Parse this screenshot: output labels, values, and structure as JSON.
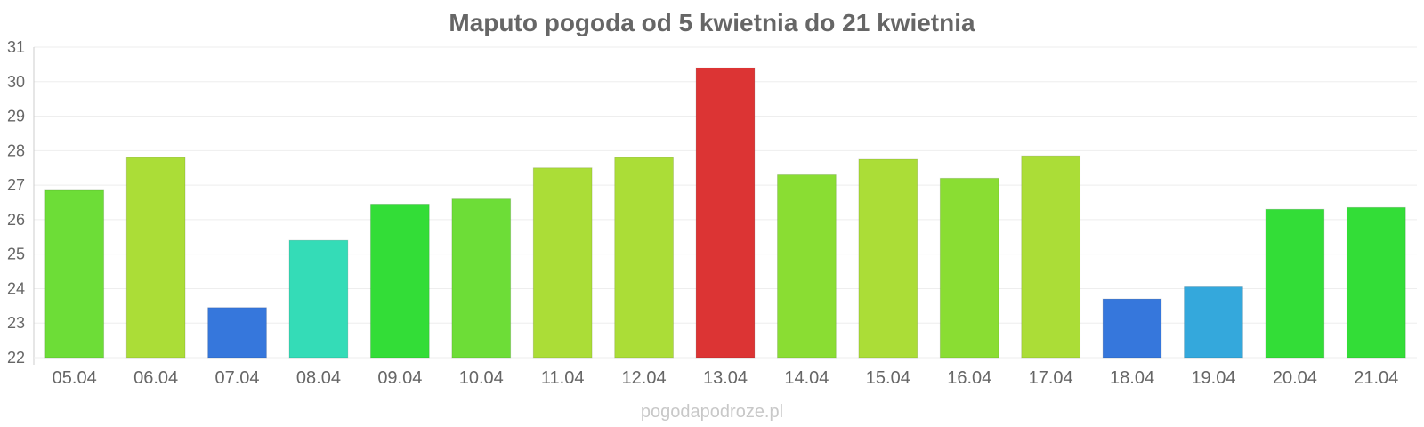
{
  "chart_data": {
    "type": "bar",
    "title": "Maputo pogoda od 5 kwietnia do 21 kwietnia",
    "xlabel": "",
    "ylabel": "",
    "ylim": [
      22,
      31
    ],
    "yticks": [
      22,
      23,
      24,
      25,
      26,
      27,
      28,
      29,
      30,
      31
    ],
    "grid": true,
    "categories": [
      "05.04",
      "06.04",
      "07.04",
      "08.04",
      "09.04",
      "10.04",
      "11.04",
      "12.04",
      "13.04",
      "14.04",
      "15.04",
      "16.04",
      "17.04",
      "18.04",
      "19.04",
      "20.04",
      "21.04"
    ],
    "values": [
      26.85,
      27.8,
      23.45,
      25.4,
      26.45,
      26.6,
      27.5,
      27.8,
      30.4,
      27.3,
      27.75,
      27.2,
      27.85,
      23.7,
      24.05,
      26.3,
      26.35
    ],
    "colors": [
      "#6ddd37",
      "#abdd37",
      "#3677dc",
      "#34dcb7",
      "#33dd37",
      "#6ddd37",
      "#abdd37",
      "#abdd37",
      "#dc3434",
      "#8add33",
      "#abdd37",
      "#8add33",
      "#abdd37",
      "#3677dc",
      "#34a8dc",
      "#33dd37",
      "#33dd37"
    ]
  },
  "footer": {
    "watermark": "pogodapodroze.pl"
  }
}
